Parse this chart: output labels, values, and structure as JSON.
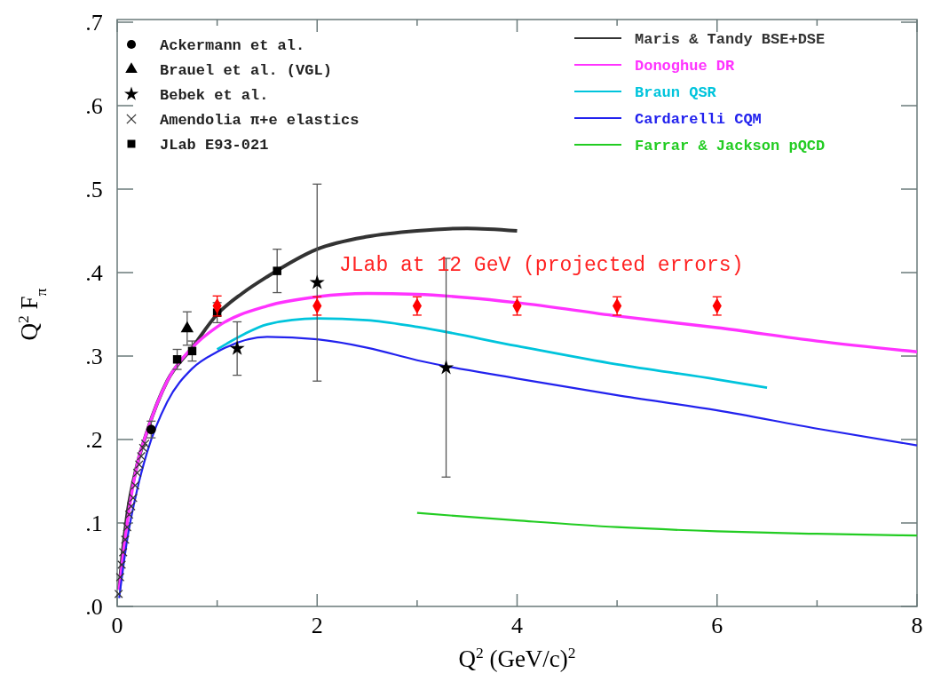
{
  "chart_data": {
    "type": "line",
    "xlabel": "Q$^{2}$ (GeV/c)$^{2}$",
    "ylabel": "Q$^{2}$ F$_{π}$",
    "xlim": [
      0,
      8
    ],
    "ylim": [
      0,
      0.7
    ],
    "xticks": [
      0,
      {
        "value": 1,
        "label": null
      },
      2,
      {
        "value": 3,
        "label": null
      },
      4,
      {
        "value": 5,
        "label": null
      },
      6,
      {
        "value": 7,
        "label": null
      },
      8
    ],
    "yticks": [
      {
        "value": 0,
        "label": ".0"
      },
      {
        "value": 0.1,
        "label": ".1"
      },
      {
        "value": 0.2,
        "label": ".2"
      },
      {
        "value": 0.3,
        "label": ".3"
      },
      {
        "value": 0.4,
        "label": ".4"
      },
      {
        "value": 0.5,
        "label": ".5"
      },
      {
        "value": 0.6,
        "label": ".6"
      },
      {
        "value": 0.7,
        "label": ".7"
      }
    ],
    "grid": false,
    "legend": "top",
    "annotations": [
      "JLab at 12 GeV (projected errors)"
    ],
    "series": [
      {
        "name": "Maris & Tandy BSE+DSE",
        "color": "#333333",
        "x": [
          0.02,
          0.05,
          0.1,
          0.2,
          0.3,
          0.5,
          0.75,
          1.0,
          1.25,
          1.5,
          2.0,
          2.5,
          3.0,
          3.5,
          4.0
        ],
        "values": [
          0.02,
          0.06,
          0.11,
          0.17,
          0.21,
          0.27,
          0.31,
          0.35,
          0.375,
          0.395,
          0.428,
          0.443,
          0.45,
          0.453,
          0.45
        ]
      },
      {
        "name": "Donoghue DR",
        "color": "#ff33ff",
        "x": [
          0.02,
          0.1,
          0.2,
          0.3,
          0.5,
          0.75,
          1.0,
          1.5,
          2.0,
          2.5,
          3.0,
          3.5,
          4.0,
          5.0,
          6.0,
          7.0,
          8.0
        ],
        "values": [
          0.02,
          0.1,
          0.17,
          0.21,
          0.27,
          0.31,
          0.335,
          0.36,
          0.371,
          0.375,
          0.374,
          0.37,
          0.364,
          0.348,
          0.334,
          0.318,
          0.305
        ]
      },
      {
        "name": "Braun QSR",
        "color": "#00c4dc",
        "x": [
          1.0,
          1.25,
          1.5,
          2.0,
          2.5,
          3.0,
          4.0,
          5.0,
          6.0,
          6.5
        ],
        "values": [
          0.308,
          0.325,
          0.338,
          0.345,
          0.343,
          0.335,
          0.312,
          0.29,
          0.272,
          0.262
        ]
      },
      {
        "name": "Cardarelli CQM",
        "color": "#2222ee",
        "x": [
          0.02,
          0.1,
          0.2,
          0.3,
          0.5,
          0.75,
          1.0,
          1.5,
          2.0,
          2.5,
          3.0,
          4.0,
          5.0,
          6.0,
          7.0,
          8.0
        ],
        "values": [
          0.01,
          0.08,
          0.14,
          0.185,
          0.245,
          0.285,
          0.305,
          0.323,
          0.32,
          0.31,
          0.295,
          0.273,
          0.253,
          0.235,
          0.213,
          0.193
        ]
      },
      {
        "name": "Farrar & Jackson pQCD",
        "color": "#22cc22",
        "x": [
          3.0,
          4.0,
          5.0,
          6.0,
          7.0,
          8.0
        ],
        "values": [
          0.112,
          0.103,
          0.095,
          0.09,
          0.087,
          0.085
        ]
      },
      {
        "type": "scatter",
        "name": "Ackermann et al.",
        "color": "#000000",
        "marker": "circle",
        "x": [
          0.34
        ],
        "values": [
          0.212
        ],
        "errors": [
          0.01
        ]
      },
      {
        "type": "scatter",
        "name": "Brauel et al. (VGL)",
        "color": "#000000",
        "marker": "triangle",
        "x": [
          0.7
        ],
        "values": [
          0.333
        ],
        "errors": [
          0.02
        ]
      },
      {
        "type": "scatter",
        "name": "Bebek et al.",
        "color": "#000000",
        "marker": "star",
        "x": [
          1.2,
          2.0,
          3.29
        ],
        "values": [
          0.309,
          0.388,
          0.286
        ],
        "errors": [
          0.032,
          0.118,
          0.131
        ]
      },
      {
        "type": "scatter",
        "name": "Amendolia π+e elastics",
        "color": "#333333",
        "marker": "cross",
        "x": [
          0.015,
          0.03,
          0.045,
          0.06,
          0.08,
          0.1,
          0.12,
          0.14,
          0.16,
          0.18,
          0.2,
          0.22,
          0.24,
          0.26,
          0.28
        ],
        "values": [
          0.015,
          0.035,
          0.05,
          0.065,
          0.08,
          0.095,
          0.11,
          0.12,
          0.13,
          0.145,
          0.16,
          0.17,
          0.18,
          0.19,
          0.195
        ]
      },
      {
        "type": "scatter",
        "name": "JLab E93-021",
        "color": "#000000",
        "marker": "square",
        "x": [
          0.6,
          0.75,
          1.0,
          1.6
        ],
        "values": [
          0.296,
          0.306,
          0.352,
          0.402
        ],
        "errors": [
          0.012,
          0.012,
          0.012,
          0.026
        ]
      },
      {
        "type": "scatter",
        "color": "#ff0000",
        "marker": "diamond",
        "x": [
          1,
          2,
          3,
          4,
          5,
          6
        ],
        "values": [
          0.36,
          0.36,
          0.36,
          0.36,
          0.36,
          0.36
        ],
        "errors": [
          0.012,
          0.011,
          0.011,
          0.011,
          0.011,
          0.011
        ]
      }
    ]
  }
}
